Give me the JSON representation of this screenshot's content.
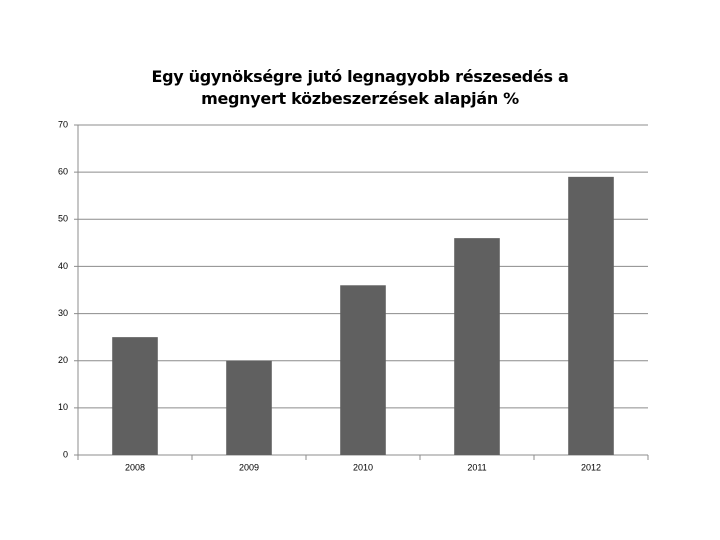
{
  "chart_data": {
    "type": "bar",
    "title": "Egy ügynökségre jutó legnagyobb részesedés a megnyert közbeszerzések alapján %",
    "categories": [
      "2008",
      "2009",
      "2010",
      "2011",
      "2012"
    ],
    "values": [
      25,
      20,
      36,
      46,
      59
    ],
    "color": "#606060",
    "ylim": [
      0,
      70
    ],
    "yticks": [
      0,
      10,
      20,
      30,
      40,
      50,
      60,
      70
    ],
    "grid": true
  }
}
